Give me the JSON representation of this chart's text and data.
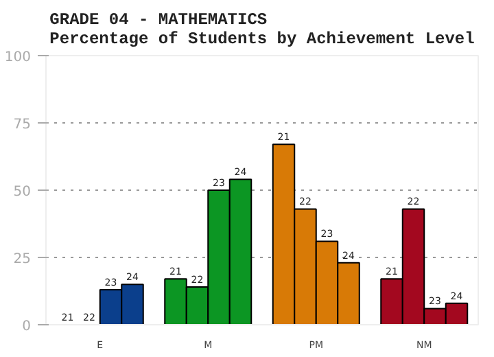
{
  "chart_data": {
    "type": "bar",
    "title": "GRADE 04 - MATHEMATICS\nPercentage of Students by Achievement Level",
    "categories": [
      "E",
      "M",
      "PM",
      "NM"
    ],
    "series": [
      {
        "name": "21",
        "colors": [
          "#0b3f8c",
          "#0c9623",
          "#d87a06",
          "#a3081f"
        ],
        "values": [
          0,
          17,
          67,
          17
        ]
      },
      {
        "name": "22",
        "colors": [
          "#0b3f8c",
          "#0c9623",
          "#d87a06",
          "#a3081f"
        ],
        "values": [
          0,
          14,
          43,
          43
        ]
      },
      {
        "name": "23",
        "colors": [
          "#0b3f8c",
          "#0c9623",
          "#d87a06",
          "#a3081f"
        ],
        "values": [
          13,
          50,
          31,
          6
        ]
      },
      {
        "name": "24",
        "colors": [
          "#0b3f8c",
          "#0c9623",
          "#d87a06",
          "#a3081f"
        ],
        "values": [
          15,
          54,
          23,
          8
        ]
      }
    ],
    "ylim": [
      0,
      100
    ],
    "yticks": [
      0,
      25,
      50,
      75,
      100
    ],
    "grid": "y"
  }
}
